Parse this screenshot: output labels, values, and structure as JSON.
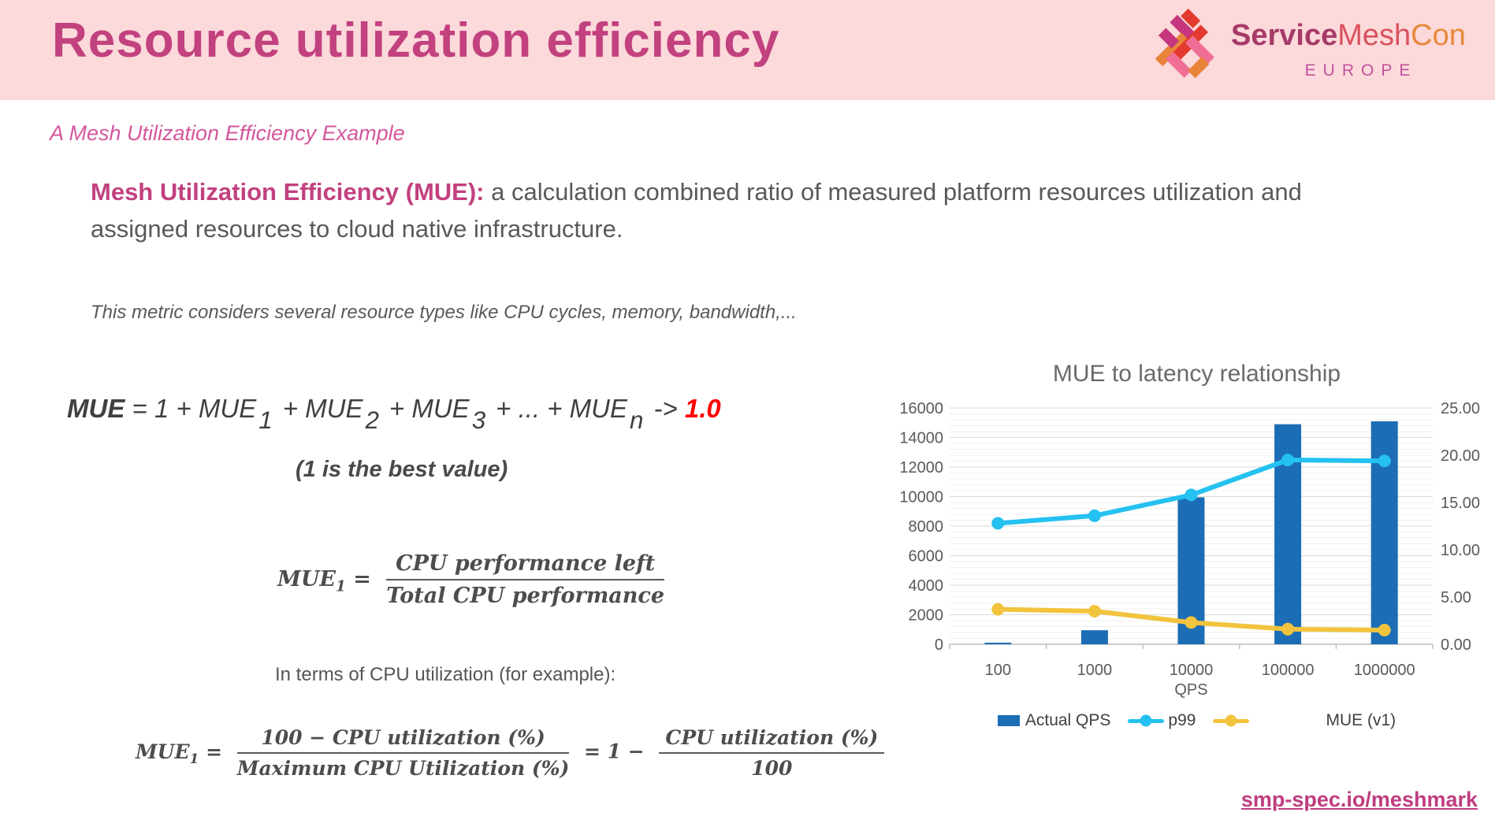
{
  "header": {
    "title": "Resource utilization efficiency",
    "logo": {
      "mark_icon": "weave-logo-mark",
      "service": "Service",
      "mesh": "Mesh",
      "con": "Con",
      "region": "EUROPE"
    }
  },
  "subtitle": "A Mesh Utilization Efficiency Example",
  "intro": {
    "lead": "Mesh Utilization Efficiency (MUE):",
    "body": " a calculation combined ratio of measured platform resources utilization and assigned resources to cloud native infrastructure."
  },
  "note": "This metric considers several resource types like CPU cycles, memory, bandwidth,...",
  "formula_sum": {
    "segments": [
      {
        "text": "MUE",
        "style": "lead"
      },
      {
        "text": " = 1 + MUE"
      },
      {
        "text": "1",
        "style": "sub"
      },
      {
        "text": "+ MUE"
      },
      {
        "text": "2",
        "style": "sub"
      },
      {
        "text": "+ MUE"
      },
      {
        "text": "3",
        "style": "sub"
      },
      {
        "text": "+ ... + MUE"
      },
      {
        "text": "n",
        "style": "sub"
      },
      {
        "text": "-> "
      },
      {
        "text": "1.0",
        "style": "result"
      }
    ],
    "caption": "(1 is the best value)"
  },
  "formula_mue1": {
    "lhs": "MUE",
    "lhs_sub": "1",
    "equals": "=",
    "numerator": "CPU performance left",
    "denominator": "Total CPU performance"
  },
  "cpu_note": "In terms of CPU utilization (for example):",
  "formula_cpu": {
    "lhs": "MUE",
    "lhs_sub": "1",
    "eq1": "=",
    "frac1_num": "100 − CPU utilization (%)",
    "frac1_den": "Maximum CPU Utilization (%)",
    "mid": "= 1 −",
    "frac2_num": "CPU utilization (%)",
    "frac2_den": "100"
  },
  "chart_data": {
    "type": "bar",
    "subtype": "combo-bar-line",
    "title": "MUE to latency relationship",
    "categories": [
      "100",
      "1000",
      "10000",
      "100000",
      "1000000"
    ],
    "xlabel": "QPS",
    "left_axis": {
      "min": 0,
      "max": 16000,
      "step": 2000,
      "minor_step": 400
    },
    "right_axis": {
      "min": 0,
      "max": 25,
      "step": 5,
      "format": "2dp"
    },
    "grid": true,
    "legend_position": "bottom",
    "series": [
      {
        "name": "Actual QPS",
        "type": "bar",
        "axis": "left",
        "color": "#1b6db5",
        "values": [
          100,
          950,
          9950,
          14900,
          15100
        ]
      },
      {
        "name": "p99",
        "type": "line",
        "axis": "right",
        "color": "#25c1f0",
        "values": [
          12.8,
          13.6,
          15.8,
          19.5,
          19.4
        ]
      },
      {
        "name": "MUE (v1)",
        "type": "line",
        "axis": "right",
        "color": "#f2c33d",
        "values": [
          3.7,
          3.5,
          2.3,
          1.6,
          1.5
        ]
      }
    ]
  },
  "footer": {
    "link": "smp-spec.io/meshmark"
  },
  "colors": {
    "header_bg": "#fcd9da",
    "accent_pink": "#c2417f",
    "subtitle_pink": "#d4579d",
    "text_gray": "#58595b",
    "formula_red": "#ff0000",
    "chart_blue": "#1b6db5",
    "chart_cyan": "#25c1f0",
    "chart_gold": "#f2c33d"
  }
}
